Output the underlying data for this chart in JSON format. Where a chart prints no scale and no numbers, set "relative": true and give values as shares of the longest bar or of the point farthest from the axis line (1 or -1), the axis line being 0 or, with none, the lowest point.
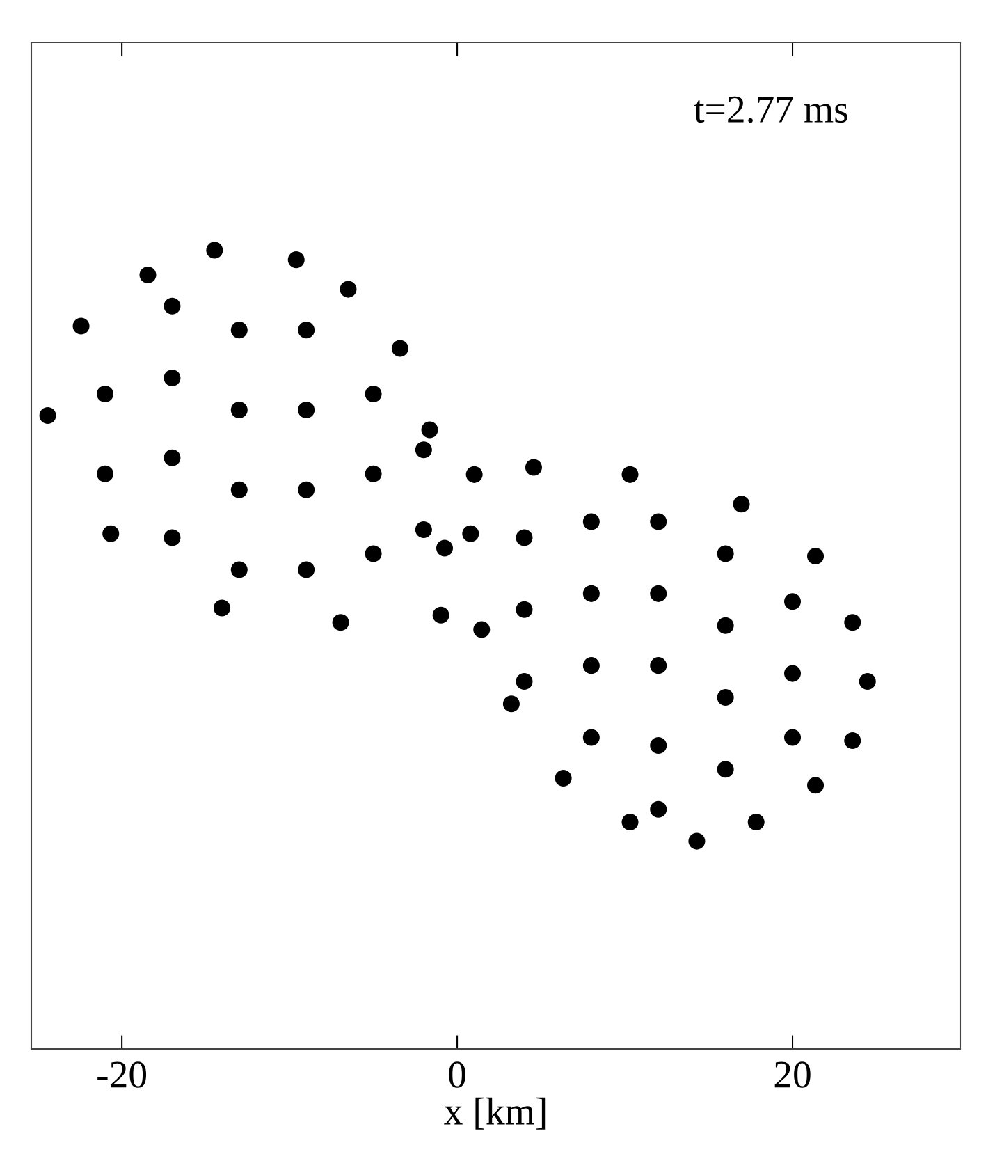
{
  "chart_data": {
    "type": "scatter",
    "xlabel": "x [km]",
    "relative": true,
    "xlim": [
      -25.4,
      30
    ],
    "xticks": [
      -20,
      0,
      20
    ],
    "marker": "circle",
    "grid": false,
    "legend": false,
    "annotations": [
      "t=2.77 ms"
    ],
    "series": [
      {
        "color": "#000000",
        "x": [
          -14.47,
          -9.6,
          -6.5,
          -3.41,
          -1.64,
          -0.75,
          -0.97,
          -6.95,
          -14.03,
          -20.66,
          -24.42,
          -22.43,
          -18.45,
          -21,
          -21,
          -17,
          -17,
          -17,
          -17,
          -13,
          -13,
          -13,
          -13,
          -9,
          -9,
          -9,
          -9,
          -5,
          -5,
          -5,
          -2,
          -2
        ],
        "values": [
          1.0,
          0.988,
          0.951,
          0.877,
          0.775,
          0.627,
          0.543,
          0.534,
          0.552,
          0.645,
          0.793,
          0.905,
          0.969,
          0.72,
          0.82,
          0.64,
          0.74,
          0.84,
          0.93,
          0.6,
          0.7,
          0.8,
          0.9,
          0.6,
          0.7,
          0.8,
          0.9,
          0.62,
          0.72,
          0.82,
          0.65,
          0.75
        ]
      },
      {
        "color": "#000000",
        "x": [
          1.02,
          4.56,
          10.31,
          16.95,
          21.37,
          23.58,
          24.47,
          23.58,
          21.37,
          17.83,
          14.29,
          10.31,
          6.33,
          3.23,
          1.46,
          0.8,
          4,
          4,
          4,
          8,
          8,
          8,
          8,
          12,
          12,
          12,
          12,
          12,
          16,
          16,
          16,
          16,
          20,
          20,
          20
        ],
        "values": [
          0.719,
          0.728,
          0.719,
          0.682,
          0.617,
          0.534,
          0.46,
          0.386,
          0.33,
          0.284,
          0.26,
          0.284,
          0.339,
          0.432,
          0.525,
          0.645,
          0.64,
          0.55,
          0.46,
          0.66,
          0.57,
          0.48,
          0.39,
          0.66,
          0.57,
          0.48,
          0.38,
          0.3,
          0.62,
          0.53,
          0.44,
          0.35,
          0.56,
          0.47,
          0.39
        ]
      }
    ]
  }
}
